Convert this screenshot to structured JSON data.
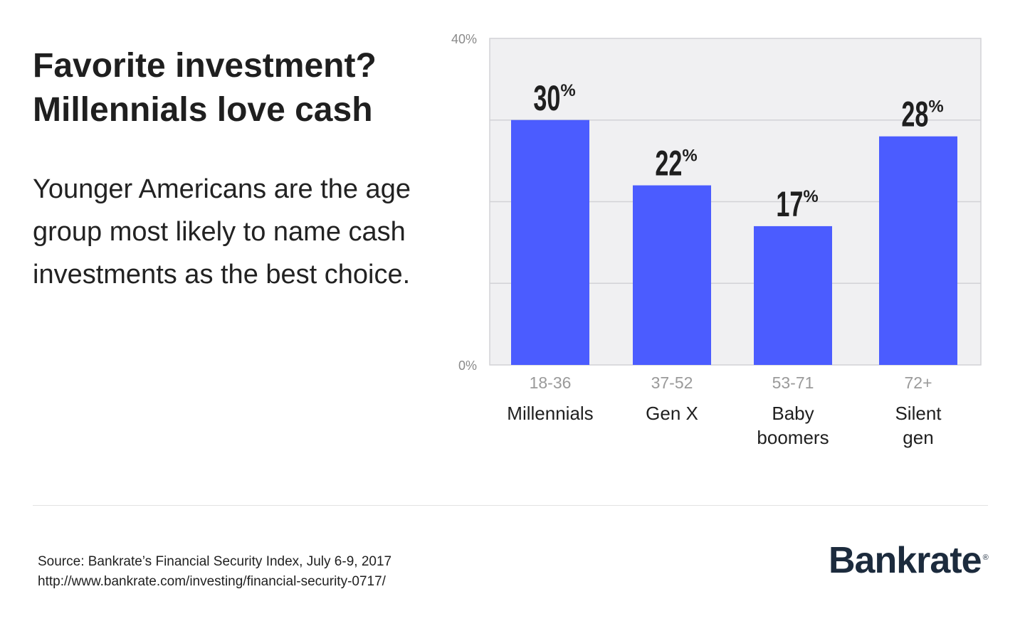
{
  "headline": {
    "line1": "Favorite investment?",
    "line2": "Millennials love cash"
  },
  "subtext": "Younger Americans are the age group most likely to name cash investments as the best choice.",
  "source": {
    "line1": "Source: Bankrate’s Financial Security Index, July 6-9, 2017",
    "line2": "http://www.bankrate.com/investing/financial-security-0717/"
  },
  "logo": {
    "text": "Bankrate",
    "registered": "®"
  },
  "colors": {
    "bar": "#4b5cff",
    "plot_background": "#f0f0f2",
    "gridline": "#d2d2d6",
    "age_label": "#9a9a9a",
    "text": "#1f1f1f"
  },
  "chart_data": {
    "type": "bar",
    "categories": [
      "Millennials",
      "Gen X",
      "Baby boomers",
      "Silent gen"
    ],
    "category_lines": [
      [
        "Millennials"
      ],
      [
        "Gen X"
      ],
      [
        "Baby",
        "boomers"
      ],
      [
        "Silent",
        "gen"
      ]
    ],
    "age_ranges": [
      "18-36",
      "37-52",
      "53-71",
      "72+"
    ],
    "values": [
      30,
      22,
      17,
      28
    ],
    "value_labels": [
      "30",
      "22",
      "17",
      "28"
    ],
    "value_suffix": "%",
    "ylim": [
      0,
      40
    ],
    "y_tick_labels": [
      {
        "value": 40,
        "label": "40%"
      },
      {
        "value": 0,
        "label": "0%"
      }
    ],
    "gridlines": [
      10,
      20,
      30
    ],
    "grid": true,
    "legend": "none"
  }
}
